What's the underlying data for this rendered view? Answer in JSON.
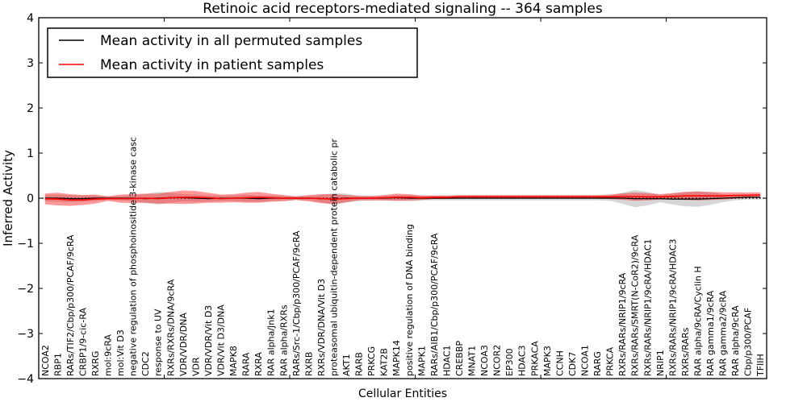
{
  "chart_data": {
    "type": "line",
    "title": "Retinoic acid receptors-mediated signaling -- 364 samples",
    "xlabel": "Cellular Entities",
    "ylabel": "Inferred Activity",
    "ylim": [
      -4,
      4
    ],
    "yticks": [
      -4,
      -3,
      -2,
      -1,
      0,
      1,
      2,
      3,
      4
    ],
    "xticks": [
      0,
      10,
      20,
      30,
      40,
      50
    ],
    "grid": false,
    "baseline": 0,
    "baseline_style": "dotted-black",
    "legend_position": "upper left",
    "categories": [
      "NCOA2",
      "RBP1",
      "RARs/TIF2/Cbp/p300/PCAF/9cRA",
      "CRBP1/9-cic-RA",
      "RXRG",
      "mol:9cRA",
      "mol:Vit D3",
      "negative regulation of phosphoinositide 3-kinase casc",
      "CDC2",
      "response to UV",
      "RXRs/RXRs/DNA/9cRA",
      "VDR/VDR/DNA",
      "VDR",
      "VDR/VDR/Vit D3",
      "VDR/Vit D3/DNA",
      "MAPK8",
      "RARA",
      "RXRA",
      "RAR alpha/Jnk1",
      "RAR alpha/RXRs",
      "RARs/Src-1/Cbp/p300/PCAF/9cRA",
      "RXRB",
      "RXRs/VDR/DNA/Vit D3",
      "proteasomal ubiquitin-dependent protein catabolic pr",
      "AKT1",
      "RARB",
      "PRKCG",
      "KAT2B",
      "MAPK14",
      "positive regulation of DNA binding",
      "MAPK1",
      "RARs/AIB1/Cbp/p300/PCAF/9cRA",
      "HDAC1",
      "CREBBP",
      "MNAT1",
      "NCOA3",
      "NCOR2",
      "EP300",
      "HDAC3",
      "PRKACA",
      "MAPK3",
      "CCNH",
      "CDK7",
      "NCOA1",
      "RARG",
      "PRKCA",
      "RXRs/RARs/NRIP1/9cRA",
      "RXRs/RARs/SMRT(N-CoR2)/9cRA",
      "RXRs/RARs/NRIP1/9cRA/HDAC1",
      "NRIP1",
      "RXRs/RARs/NRIP1/9cRA/HDAC3",
      "RXRs/RARs",
      "RAR alpha/9cRA/Cyclin H",
      "RAR gamma1/9cRA",
      "RAR gamma2/9cRA",
      "RAR alpha/9cRA",
      "Cbp/p300/PCAF",
      "TFIIH"
    ],
    "series": [
      {
        "name": "Mean activity in all permuted samples",
        "color": "#000000",
        "line_width": 1.2,
        "band_color": "#808080",
        "band_opacity": 0.32,
        "values": [
          0.0,
          0.0,
          -0.01,
          -0.01,
          0.0,
          0.0,
          0.0,
          0.0,
          -0.01,
          0.0,
          0.01,
          0.01,
          0.0,
          -0.01,
          0.0,
          0.0,
          0.0,
          -0.01,
          0.0,
          0.0,
          0.0,
          0.0,
          -0.01,
          -0.02,
          0.0,
          0.0,
          0.0,
          0.0,
          0.01,
          0.0,
          0.0,
          0.0,
          0.0,
          0.0,
          0.0,
          0.0,
          0.0,
          0.0,
          0.0,
          0.0,
          0.0,
          0.0,
          0.0,
          0.0,
          0.0,
          0.0,
          0.0,
          -0.01,
          -0.01,
          -0.01,
          -0.02,
          -0.02,
          -0.02,
          -0.01,
          0.0,
          0.01,
          0.02,
          0.02
        ],
        "std": [
          0.07,
          0.08,
          0.08,
          0.07,
          0.06,
          0.04,
          0.05,
          0.06,
          0.1,
          0.14,
          0.11,
          0.08,
          0.08,
          0.07,
          0.06,
          0.06,
          0.08,
          0.07,
          0.06,
          0.05,
          0.04,
          0.05,
          0.08,
          0.13,
          0.1,
          0.06,
          0.05,
          0.05,
          0.06,
          0.07,
          0.05,
          0.05,
          0.05,
          0.05,
          0.05,
          0.05,
          0.05,
          0.05,
          0.05,
          0.05,
          0.05,
          0.05,
          0.05,
          0.05,
          0.05,
          0.06,
          0.12,
          0.19,
          0.15,
          0.08,
          0.12,
          0.16,
          0.17,
          0.14,
          0.09,
          0.06,
          0.05,
          0.05
        ]
      },
      {
        "name": "Mean activity in patient samples",
        "color": "#ff0000",
        "line_width": 1.6,
        "band_color": "#ff0000",
        "band_opacity": 0.4,
        "values": [
          -0.015,
          -0.02,
          -0.04,
          -0.04,
          -0.02,
          -0.01,
          -0.01,
          -0.01,
          0.0,
          -0.01,
          0.01,
          0.02,
          0.02,
          0.01,
          -0.01,
          0.0,
          0.01,
          0.02,
          0.01,
          0.0,
          0.0,
          0.0,
          -0.01,
          -0.02,
          -0.01,
          0.0,
          0.0,
          0.01,
          0.02,
          0.02,
          0.01,
          0.02,
          0.02,
          0.03,
          0.03,
          0.03,
          0.03,
          0.03,
          0.03,
          0.03,
          0.03,
          0.03,
          0.03,
          0.03,
          0.03,
          0.03,
          0.035,
          0.035,
          0.03,
          0.03,
          0.04,
          0.05,
          0.05,
          0.05,
          0.05,
          0.06,
          0.065,
          0.07
        ],
        "std": [
          0.12,
          0.14,
          0.13,
          0.11,
          0.1,
          0.05,
          0.09,
          0.1,
          0.1,
          0.11,
          0.13,
          0.15,
          0.14,
          0.11,
          0.09,
          0.09,
          0.11,
          0.12,
          0.09,
          0.07,
          0.04,
          0.07,
          0.1,
          0.11,
          0.08,
          0.05,
          0.05,
          0.06,
          0.08,
          0.07,
          0.05,
          0.04,
          0.04,
          0.04,
          0.04,
          0.04,
          0.04,
          0.04,
          0.04,
          0.04,
          0.04,
          0.04,
          0.04,
          0.04,
          0.04,
          0.05,
          0.07,
          0.09,
          0.08,
          0.06,
          0.07,
          0.09,
          0.1,
          0.09,
          0.08,
          0.07,
          0.06,
          0.06
        ]
      }
    ]
  },
  "legend": {
    "items": [
      {
        "label": "Mean activity in all permuted samples",
        "color": "#000000"
      },
      {
        "label": "Mean activity in patient samples",
        "color": "#ff0000"
      }
    ]
  },
  "colors": {
    "axes": "#000000",
    "background": "#ffffff",
    "permuted_line": "#000000",
    "patient_line": "#ff0000",
    "permuted_band": "#c9c9c9",
    "patient_band": "#ff9999"
  }
}
